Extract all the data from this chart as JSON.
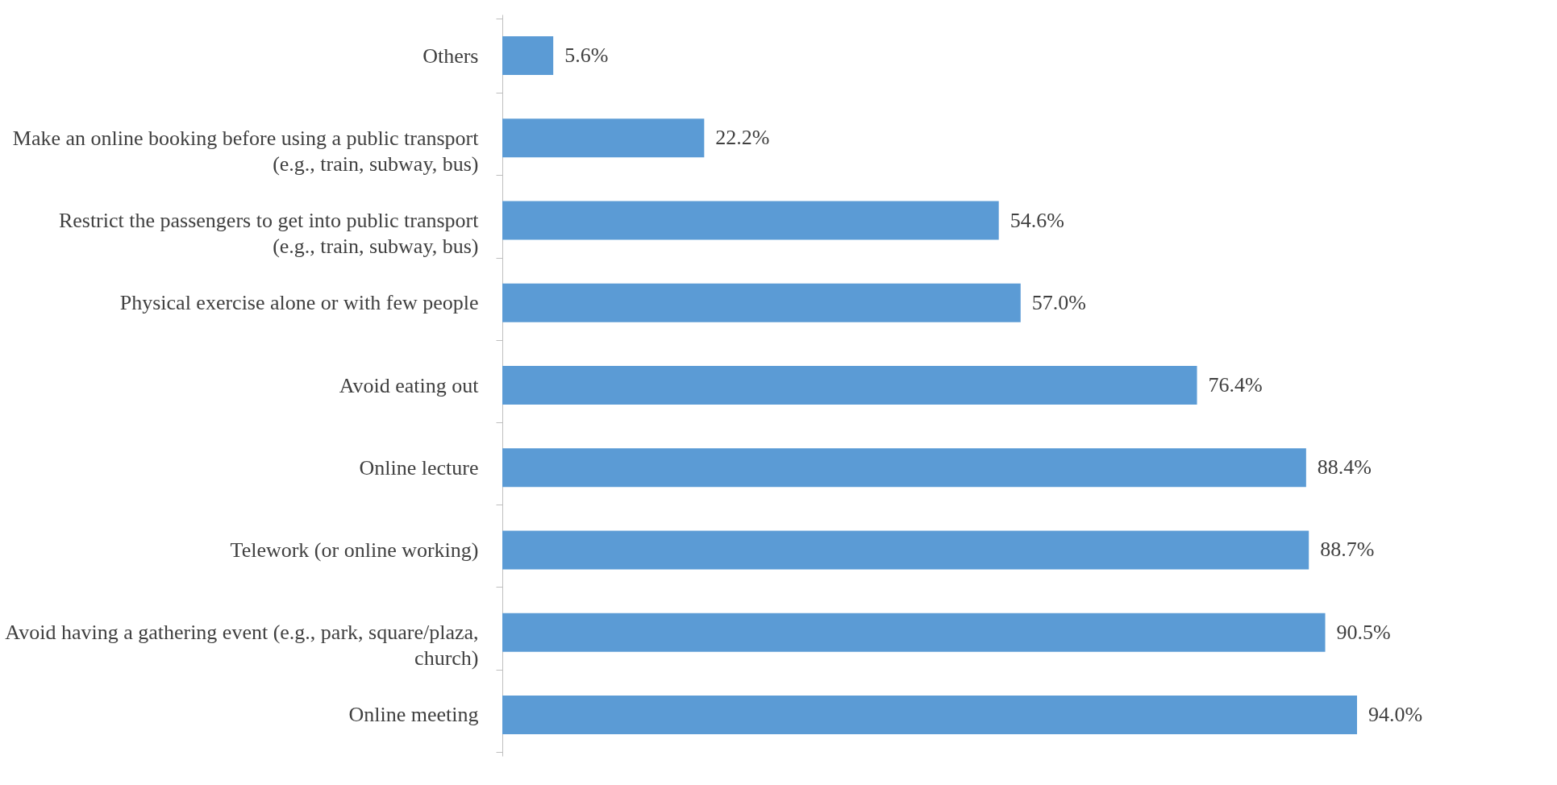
{
  "chart_data": {
    "type": "bar",
    "orientation": "horizontal",
    "grid": false,
    "value_labels": [
      "5.6%",
      "22.2%",
      "54.6%",
      "57.0%",
      "76.4%",
      "88.4%",
      "88.7%",
      "90.5%",
      "94.0%"
    ],
    "categories": [
      "Others",
      "Make an online booking before using a public transport (e.g., train, subway, bus)",
      "Restrict the passengers to get into public transport (e.g., train, subway, bus)",
      "Physical exercise alone or with few people",
      "Avoid eating out",
      "Online lecture",
      "Telework (or online working)",
      "Avoid having a gathering event (e.g., park, square/plaza, church)",
      "Online meeting"
    ],
    "values": [
      5.6,
      22.2,
      54.6,
      57.0,
      76.4,
      88.4,
      88.7,
      90.5,
      94.0
    ],
    "color": "#5b9bd5"
  }
}
